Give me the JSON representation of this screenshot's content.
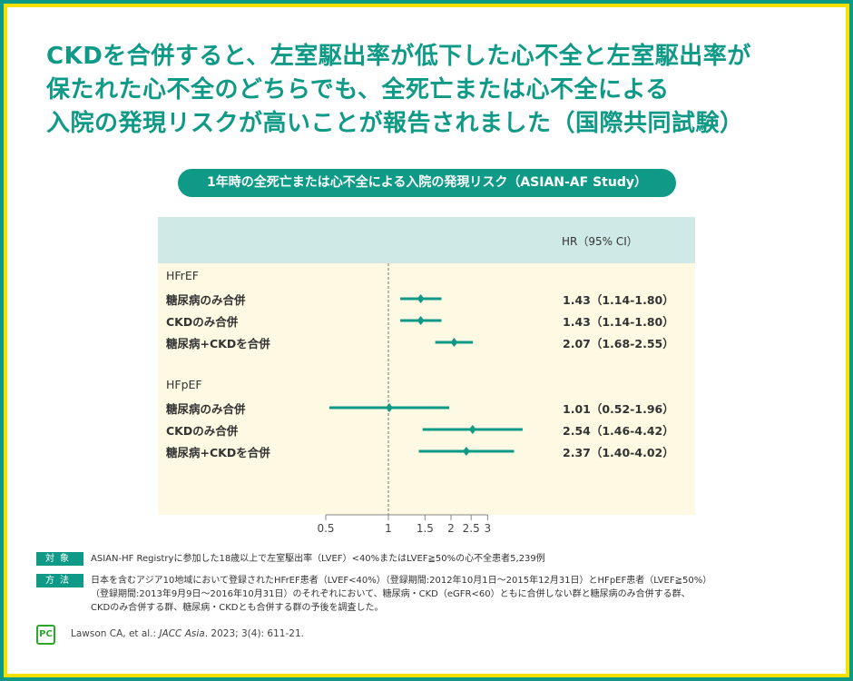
{
  "title_lines": [
    "CKDを合併すると、左室駆出率が低下した心不全と左室駆出率が",
    "保たれた心不全のどちらでも、全死亡または心不全による",
    "入院の発現リスクが高いことが報告されました（国際共同試験）"
  ],
  "chart_data": {
    "type": "forest",
    "title": "1年時の全死亡または心不全による入院の発現リスク（ASIAN-AF Study）",
    "value_header": "HR（95% CI）",
    "x_scale": "log",
    "xlim": [
      0.5,
      3
    ],
    "reference_line": 1,
    "ticks": [
      "0.5",
      "1",
      "1.5",
      "2",
      "2.5",
      "3"
    ],
    "tick_values": [
      0.5,
      1,
      1.5,
      2,
      2.5,
      3
    ],
    "color": "#0e9a86",
    "groups": [
      {
        "name": "HFrEF",
        "rows": [
          {
            "label": "糖尿病のみ合併",
            "hr": 1.43,
            "lo": 1.14,
            "hi": 1.8,
            "text": "1.43（1.14-1.80）"
          },
          {
            "label": "CKDのみ合併",
            "hr": 1.43,
            "lo": 1.14,
            "hi": 1.8,
            "text": "1.43（1.14-1.80）"
          },
          {
            "label": "糖尿病+CKDを合併",
            "hr": 2.07,
            "lo": 1.68,
            "hi": 2.55,
            "text": "2.07（1.68-2.55）"
          }
        ]
      },
      {
        "name": "HFpEF",
        "rows": [
          {
            "label": "糖尿病のみ合併",
            "hr": 1.01,
            "lo": 0.52,
            "hi": 1.96,
            "text": "1.01（0.52-1.96）"
          },
          {
            "label": "CKDのみ合併",
            "hr": 2.54,
            "lo": 1.46,
            "hi": 4.42,
            "text": "2.54（1.46-4.42）"
          },
          {
            "label": "糖尿病+CKDを合併",
            "hr": 2.37,
            "lo": 1.4,
            "hi": 4.02,
            "text": "2.37（1.40-4.02）"
          }
        ]
      }
    ]
  },
  "notes": {
    "subject_tag": "対象",
    "subject": "ASIAN-HF Registryに参加した18歳以上で左室駆出率（LVEF）<40%またはLVEF≧50%の心不全患者5,239例",
    "method_tag": "方法",
    "method_lines": [
      "日本を含むアジア10地域において登録されたHFrEF患者（LVEF<40%）（登録期間:2012年10月1日～2015年12月31日）とHFpEF患者（LVEF≧50%）",
      "（登録期間:2013年9月9日～2016年10月31日）のそれぞれにおいて、糖尿病・CKD（eGFR<60）ともに合併しない群と糖尿病のみ合併する群、",
      "CKDのみ合併する群、糖尿病・CKDとも合併する群の予後を調査した。"
    ]
  },
  "logo_text": "PC",
  "reference": {
    "authors": "Lawson CA, et al.: ",
    "journal": "JACC Asia",
    "rest": ". 2023; 3(4): 611-21."
  }
}
